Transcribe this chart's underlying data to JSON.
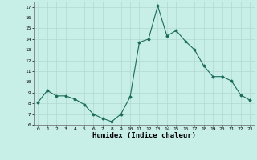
{
  "x": [
    0,
    1,
    2,
    3,
    4,
    5,
    6,
    7,
    8,
    9,
    10,
    11,
    12,
    13,
    14,
    15,
    16,
    17,
    18,
    19,
    20,
    21,
    22,
    23
  ],
  "y": [
    8.1,
    9.2,
    8.7,
    8.7,
    8.4,
    7.9,
    7.0,
    6.6,
    6.3,
    7.0,
    8.6,
    13.7,
    14.0,
    17.1,
    14.3,
    14.8,
    13.8,
    13.0,
    11.5,
    10.5,
    10.5,
    10.1,
    8.8,
    8.3
  ],
  "xlabel": "Humidex (Indice chaleur)",
  "ylim": [
    6,
    17.5
  ],
  "xlim": [
    -0.5,
    23.5
  ],
  "yticks": [
    6,
    7,
    8,
    9,
    10,
    11,
    12,
    13,
    14,
    15,
    16,
    17
  ],
  "xticks": [
    0,
    1,
    2,
    3,
    4,
    5,
    6,
    7,
    8,
    9,
    10,
    11,
    12,
    13,
    14,
    15,
    16,
    17,
    18,
    19,
    20,
    21,
    22,
    23
  ],
  "line_color": "#1a6b5a",
  "bg_color": "#c8eee8",
  "grid_color": "#b0d8d0",
  "tick_fontsize": 4.5,
  "xlabel_fontsize": 6.5
}
